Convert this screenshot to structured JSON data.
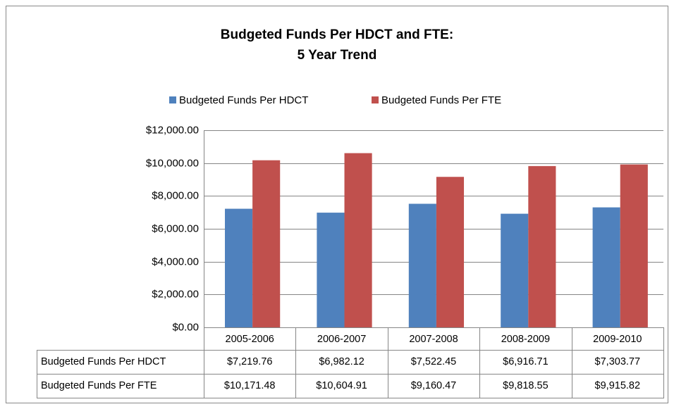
{
  "chart_data": {
    "type": "bar",
    "title": [
      "Budgeted Funds Per HDCT and FTE:",
      "5 Year Trend"
    ],
    "categories": [
      "2005-2006",
      "2006-2007",
      "2007-2008",
      "2008-2009",
      "2009-2010"
    ],
    "series": [
      {
        "name": "Budgeted Funds Per HDCT",
        "color": "#4f81bd",
        "values": [
          7219.76,
          6982.12,
          7522.45,
          6916.71,
          7303.77
        ],
        "value_labels": [
          "$7,219.76",
          "$6,982.12",
          "$7,522.45",
          "$6,916.71",
          "$7,303.77"
        ]
      },
      {
        "name": "Budgeted Funds Per FTE",
        "color": "#c0504d",
        "values": [
          10171.48,
          10604.91,
          9160.47,
          9818.55,
          9915.82
        ],
        "value_labels": [
          "$10,171.48",
          "$10,604.91",
          "$9,160.47",
          "$9,818.55",
          "$9,915.82"
        ]
      }
    ],
    "ylim": [
      0,
      12000
    ],
    "yticks": [
      {
        "value": 0,
        "label": "$0.00"
      },
      {
        "value": 2000,
        "label": "$2,000.00"
      },
      {
        "value": 4000,
        "label": "$4,000.00"
      },
      {
        "value": 6000,
        "label": "$6,000.00"
      },
      {
        "value": 8000,
        "label": "$8,000.00"
      },
      {
        "value": 10000,
        "label": "$10,000.00"
      },
      {
        "value": 12000,
        "label": "$12,000.00"
      }
    ],
    "grid": true,
    "legend": "top",
    "data_table": true
  }
}
